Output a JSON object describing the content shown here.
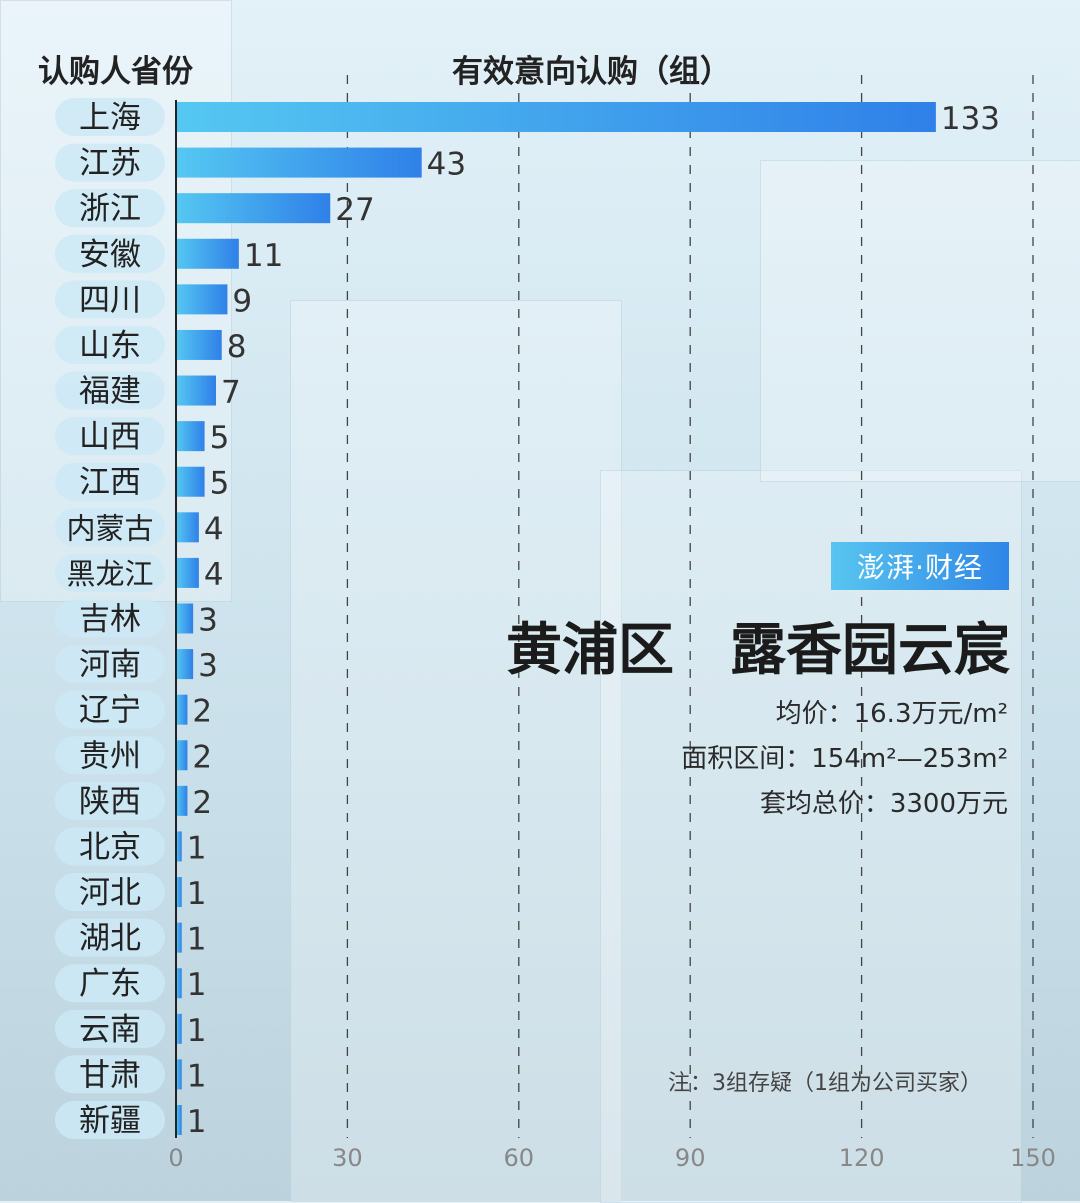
{
  "header": {
    "left_label": "认购人省份",
    "center_label": "有效意向认购（组）"
  },
  "brand": {
    "text": "澎湃·财经"
  },
  "title": "黄浦区　露香园云宸",
  "info": [
    "均价：16.3万元/m²",
    "面积区间：154m²—253m²",
    "套均总价：3300万元"
  ],
  "note": "注：3组存疑（1组为公司买家）",
  "colors": {
    "bar_start": "#55c8f2",
    "bar_end": "#2f80e8",
    "pill": "#cde9f6",
    "grid": "#444444"
  },
  "chart_data": {
    "type": "bar",
    "orientation": "horizontal",
    "categories": [
      "上海",
      "江苏",
      "浙江",
      "安徽",
      "四川",
      "山东",
      "福建",
      "山西",
      "江西",
      "内蒙古",
      "黑龙江",
      "吉林",
      "河南",
      "辽宁",
      "贵州",
      "陕西",
      "北京",
      "河北",
      "湖北",
      "广东",
      "云南",
      "甘肃",
      "新疆"
    ],
    "values": [
      133,
      43,
      27,
      11,
      9,
      8,
      7,
      5,
      5,
      4,
      4,
      3,
      3,
      2,
      2,
      2,
      1,
      1,
      1,
      1,
      1,
      1,
      1
    ],
    "xlim": [
      0,
      150
    ],
    "xticks": [
      0,
      30,
      60,
      90,
      120,
      150
    ],
    "grid": "vertical dashed",
    "xlabel": "有效意向认购（组）",
    "ylabel": "认购人省份"
  }
}
